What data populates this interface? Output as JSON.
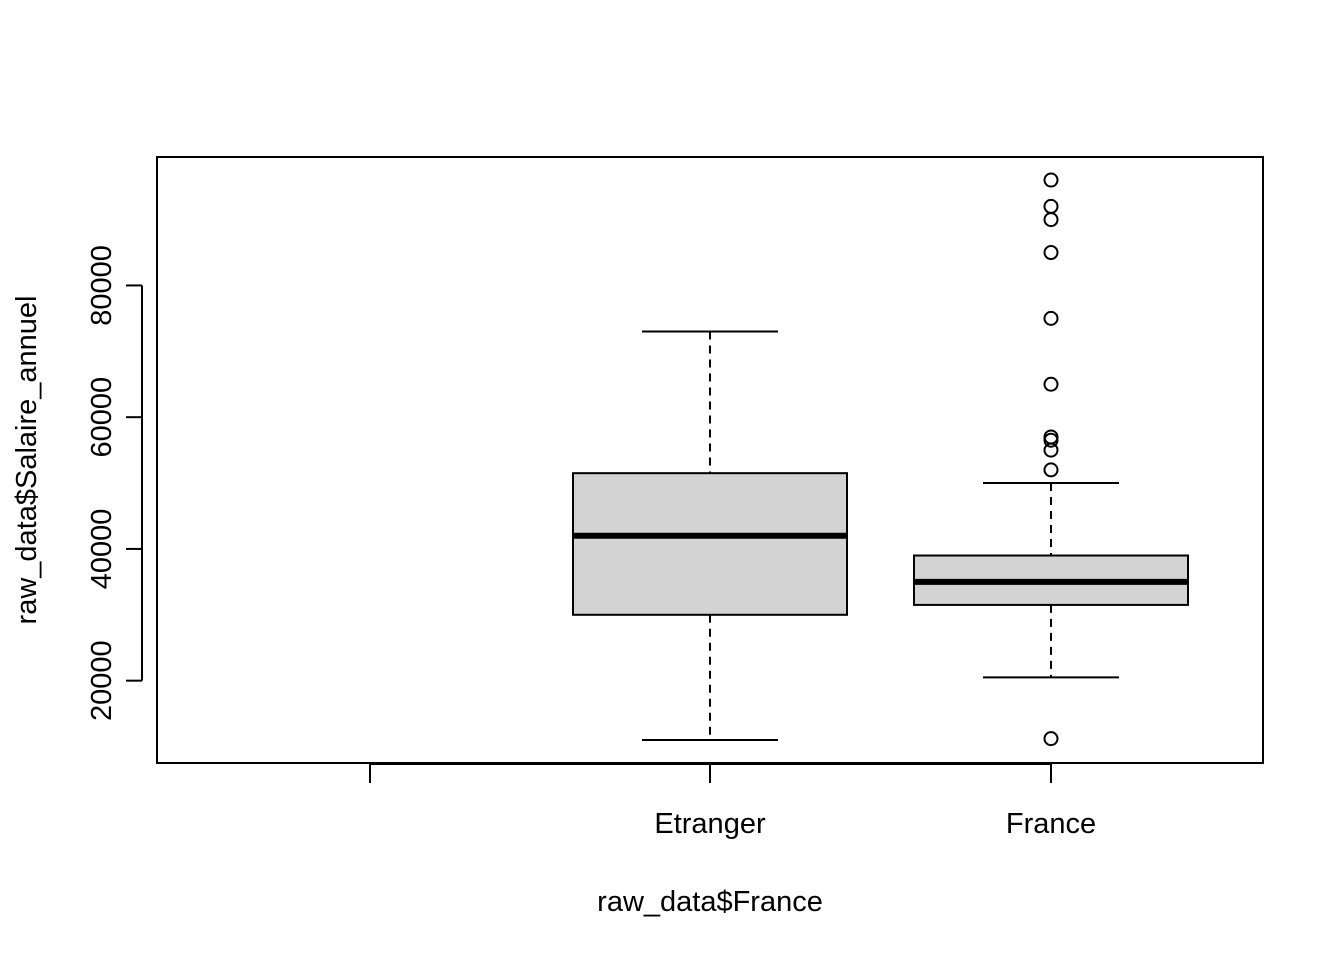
{
  "chart_data": {
    "type": "boxplot",
    "title": "",
    "xlabel": "raw_data$France",
    "ylabel": "raw_data$Salaire_annuel",
    "ylim": [
      7500,
      99500
    ],
    "yticks": [
      20000,
      40000,
      60000,
      80000
    ],
    "categories": [
      "",
      "Etranger",
      "France"
    ],
    "grid": false,
    "legend": "none",
    "colors": {
      "box_fill": "#d3d3d3",
      "stroke": "#000000",
      "background": "#ffffff"
    },
    "boxes": [
      {
        "category": "",
        "empty": true
      },
      {
        "category": "Etranger",
        "whisker_low": 11000,
        "q1": 30000,
        "median": 42000,
        "q3": 51500,
        "whisker_high": 73000,
        "outliers": []
      },
      {
        "category": "France",
        "whisker_low": 20500,
        "q1": 31500,
        "median": 35000,
        "q3": 39000,
        "whisker_high": 50000,
        "outliers": [
          11200,
          52000,
          55000,
          56500,
          57000,
          65000,
          75000,
          85000,
          90000,
          92000,
          96000
        ]
      }
    ]
  }
}
